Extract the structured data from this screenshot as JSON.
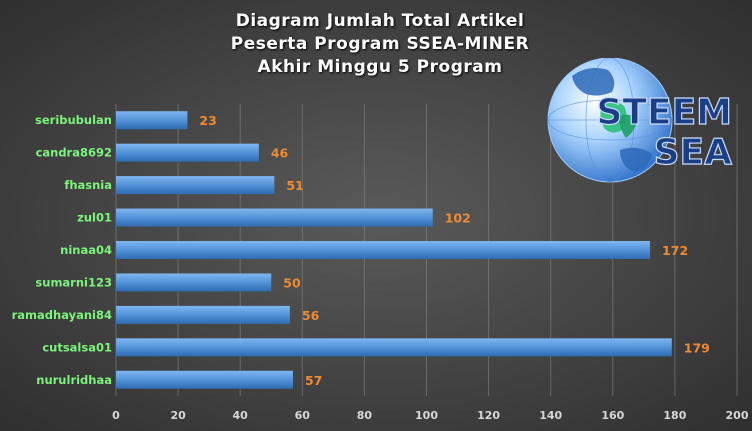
{
  "title_lines": [
    "Diagram  Jumlah  Total  Artikel",
    "Peserta  Program  SSEA-MINER",
    "Akhir  Minggu  5 Program"
  ],
  "logo": {
    "line1": "STEEM",
    "line2": "SEA",
    "icon": "globe-icon"
  },
  "colors": {
    "bar": "#4f8fd6",
    "bar_light": "#7fb6f0",
    "category_label": "#7cf37c",
    "value_label": "#f08a30",
    "logo_text": "#1a3f86"
  },
  "chart_data": {
    "type": "bar",
    "orientation": "horizontal",
    "title": "Diagram Jumlah Total Artikel Peserta Program SSEA-MINER Akhir Minggu 5 Program",
    "categories": [
      "seribubulan",
      "candra8692",
      "fhasnia",
      "zul01",
      "ninaa04",
      "sumarni123",
      "ramadhayani84",
      "cutsalsa01",
      "nurulridhaa"
    ],
    "values": [
      23,
      46,
      51,
      102,
      172,
      50,
      56,
      179,
      57
    ],
    "xlim": [
      0,
      200
    ],
    "xticks": [
      0,
      20,
      40,
      60,
      80,
      100,
      120,
      140,
      160,
      180,
      200
    ],
    "grid": true,
    "legend": "none"
  }
}
